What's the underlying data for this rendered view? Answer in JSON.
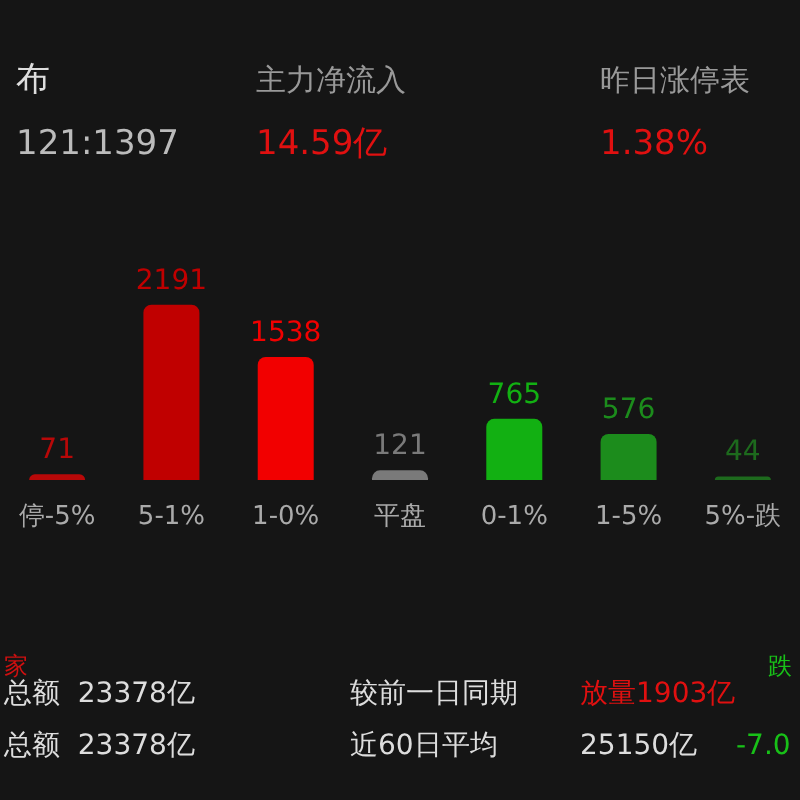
{
  "chart_data": {
    "type": "bar",
    "categories": [
      "停-5%",
      "5-1%",
      "1-0%",
      "平盘",
      "0-1%",
      "1-5%",
      "5%-跌"
    ],
    "values": [
      71,
      2191,
      1538,
      121,
      765,
      576,
      44
    ],
    "data_labels": true,
    "colors": [
      "#b80808",
      "#c00000",
      "#f20000",
      "#7a7a7a",
      "#12b012",
      "#1c8c1c",
      "#1d6a1d"
    ],
    "grid": false,
    "annotations": [
      "布",
      "121:1397",
      "主力净流入",
      "14.59亿",
      "昨日涨停表",
      "1.38%",
      "家",
      "跌",
      "总额  23378亿",
      "总额  23378亿",
      "较前一日同期",
      "放量1903亿",
      "近60日平均",
      "25150亿",
      "-7.0"
    ]
  }
}
